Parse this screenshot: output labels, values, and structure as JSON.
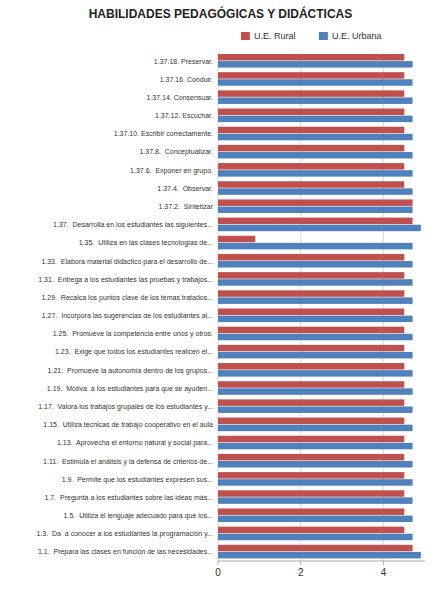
{
  "chart_data": {
    "type": "bar",
    "orientation": "horizontal",
    "title": "HABILIDADES PEDAGÓGICAS Y DIDÁCTICAS",
    "categories": [
      "1.37.18. Preservar.",
      "1.37.16. Conduir.",
      "1.37.14. Consensuar.",
      "1.37.12. Escuchar.",
      "1.37.10. Escribir correctamente.",
      "1.37.8.  Conceptualizar.",
      "1.37.6.  Exponer en grupo.",
      "1.37.4.  Observar.",
      "1.37.2.  Sintetizar",
      "1.37.  Desarrolla en los estudiantes las siguientes...",
      "1.35.  Utiliza en las clases tecnologías de...",
      "1.33.  Elabora material didáctico para el desarrollo de...",
      "1.31.  Entrega a los estudiantes las pruebas y trabajos...",
      "1.29.  Recalca los puntos clave de los temas tratados...",
      "1.27.  Incorpora las sugerencias de los estudiantes al...",
      "1.25.  Promueve la competencia entre unos y otros.",
      "1.23.  Exige que todos los estudiantes realicen el...",
      "1.21.  Promueve la autonomía dentro de los grupos...",
      "1.19.  Motiva  a los estudiantes para que se ayuden...",
      "1.17.  Valora los trabajos grupales de los estudiantes y...",
      "1.15.  Utiliza técnicas de trabajo cooperativo en el aula",
      "1.13.  Aprovecha el entorno natural y social para...",
      "1.11.  Estimula el análisis y la defensa de criterios de...",
      "1.9.  Permite que los estudiantes expresen sus...",
      "1.7.  Pregunta a los estudiantes sobre las ideas más...",
      "1.5.  Utiliza el lenguaje adecuado para que los...",
      "1.3.  Da  a conocer a los estudiantes la programación y...",
      "1.1.  Prepara las clases en función de las necesidades..."
    ],
    "series": [
      {
        "name": "U.E. Rural",
        "color": "#C0504D",
        "values": [
          4.5,
          4.5,
          4.5,
          4.5,
          4.5,
          4.5,
          4.5,
          4.5,
          4.7,
          4.7,
          0.9,
          4.5,
          4.5,
          4.5,
          4.5,
          4.5,
          4.5,
          4.5,
          4.5,
          4.5,
          4.5,
          4.5,
          4.5,
          4.5,
          4.5,
          4.5,
          4.5,
          4.7
        ]
      },
      {
        "name": "U.E. Urbana",
        "color": "#4F81BD",
        "values": [
          4.7,
          4.7,
          4.7,
          4.7,
          4.7,
          4.7,
          4.7,
          4.7,
          4.7,
          4.9,
          4.7,
          4.7,
          4.7,
          4.7,
          4.7,
          4.7,
          4.7,
          4.7,
          4.7,
          4.7,
          4.7,
          4.7,
          4.7,
          4.7,
          4.7,
          4.7,
          4.7,
          4.9
        ]
      }
    ],
    "xlim": [
      0,
      5
    ],
    "xticks": [
      0,
      2,
      4
    ],
    "grid": true,
    "legend": "top"
  }
}
